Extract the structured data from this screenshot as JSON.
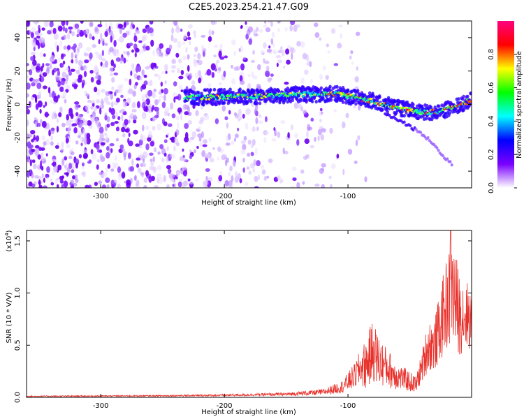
{
  "page_title": "C2E5.2023.254.21.47.G09",
  "chart_data": [
    {
      "type": "heatmap",
      "title": "C2E5.2023.254.21.47.G09",
      "xlabel": "Height of straight line (km)",
      "ylabel": "Frequency (Hz)",
      "xlim": [
        -360,
        0
      ],
      "ylim": [
        -50,
        50
      ],
      "x_ticks": [
        -300,
        -200,
        -100
      ],
      "y_ticks": [
        -40,
        -20,
        0,
        20,
        40
      ],
      "colorbar": {
        "label": "Normalized spectral amplitude",
        "range": [
          0.0,
          1.0
        ],
        "ticks": [
          "0.0",
          "0.2",
          "0.4",
          "0.6",
          "0.8"
        ],
        "tick_values": [
          0.0,
          0.2,
          0.4,
          0.6,
          0.8
        ],
        "colors": [
          "#ffffff",
          "#7a00ff",
          "#0000ff",
          "#00ffff",
          "#00ff00",
          "#ffff00",
          "#ff0000",
          "#ff0080"
        ]
      },
      "ridge": {
        "x": [
          -232,
          -200,
          -170,
          -140,
          -120,
          -110,
          -100,
          -80,
          -60,
          -45,
          -35,
          -25,
          -15,
          -8,
          0
        ],
        "y": [
          4,
          4.5,
          5,
          6,
          6,
          6.5,
          5,
          2,
          -2,
          -4,
          -5,
          -4,
          -2,
          0,
          3
        ],
        "start_x": -232
      },
      "branch": {
        "x": [
          -70,
          -60,
          -50,
          -40,
          -30,
          -25,
          -15
        ],
        "y": [
          -6,
          -9,
          -13,
          -18,
          -24,
          -30,
          -36
        ]
      },
      "noise_extent_x": [
        -360,
        -110
      ],
      "grid": false
    },
    {
      "type": "line",
      "xlabel": "Height of straight line (km)",
      "ylabel": "SNR (10 * V/V)",
      "scale_label_base": "(x10",
      "scale_label_exp": "4",
      "scale_label_end": ")",
      "xlim": [
        -360,
        0
      ],
      "ylim": [
        0,
        1.6
      ],
      "x_ticks": [
        -300,
        -200,
        -100
      ],
      "y_ticks": [
        "0.0",
        "0.5",
        "1.0",
        "1.5"
      ],
      "y_tick_values": [
        0,
        0.5,
        1.0,
        1.5
      ],
      "color": "#e8302a",
      "envelope": {
        "x": [
          -360,
          -250,
          -200,
          -150,
          -120,
          -105,
          -95,
          -90,
          -85,
          -80,
          -75,
          -70,
          -65,
          -60,
          -55,
          -50,
          -45,
          -40,
          -35,
          -30,
          -25,
          -20,
          -15,
          -10,
          -5,
          0
        ],
        "mean": [
          0.01,
          0.015,
          0.02,
          0.03,
          0.05,
          0.1,
          0.2,
          0.28,
          0.32,
          0.45,
          0.35,
          0.3,
          0.25,
          0.2,
          0.18,
          0.15,
          0.12,
          0.3,
          0.5,
          0.5,
          0.7,
          0.9,
          1.0,
          0.8,
          0.8,
          0.75
        ],
        "spread": [
          0.005,
          0.007,
          0.01,
          0.015,
          0.03,
          0.06,
          0.12,
          0.18,
          0.25,
          0.3,
          0.25,
          0.2,
          0.17,
          0.13,
          0.11,
          0.1,
          0.08,
          0.15,
          0.25,
          0.25,
          0.35,
          0.45,
          0.55,
          0.4,
          0.35,
          0.3
        ]
      },
      "peak": {
        "x": -17,
        "y": 1.6
      },
      "grid": false
    }
  ]
}
